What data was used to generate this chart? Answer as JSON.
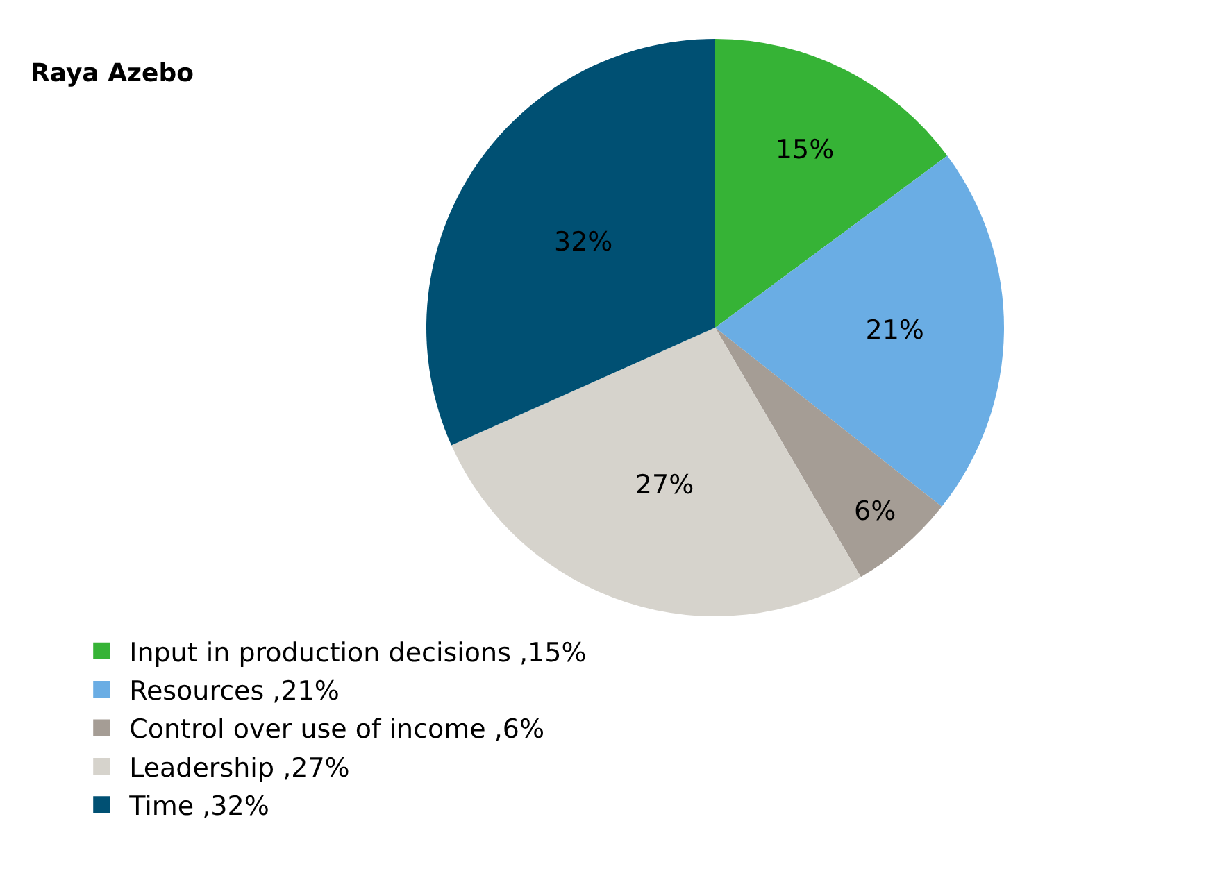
{
  "chart_data": {
    "type": "pie",
    "title": "Raya Azebo",
    "categories": [
      "Input in production decisions ,15%",
      "Resources ,21%",
      "Control over use of income ,6%",
      "Leadership ,27%",
      "Time ,32%"
    ],
    "values": [
      15,
      21,
      6,
      27,
      32
    ],
    "value_labels": [
      "15%",
      "21%",
      "6%",
      "27%",
      "32%"
    ],
    "colors": [
      "#36b336",
      "#6aade4",
      "#a59d95",
      "#d6d3cc",
      "#005073"
    ],
    "legend": "bottom left"
  }
}
